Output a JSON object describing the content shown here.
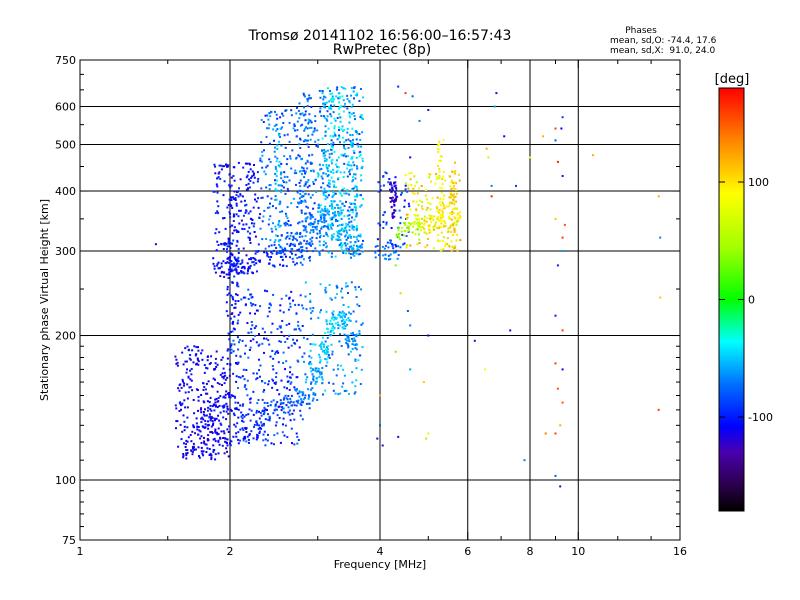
{
  "chart_data": {
    "type": "scatter",
    "title": "Tromsø 20141102 16:56:00–16:57:43",
    "subtitle": "RwPretec (8p)",
    "xlabel": "Frequency [MHz]",
    "ylabel": "Stationary phase Virtual Height [km]",
    "x_scale": "log2",
    "y_scale": "log",
    "xlim": [
      1,
      16
    ],
    "ylim": [
      75,
      750
    ],
    "x_ticks": [
      1,
      2,
      4,
      6,
      8,
      10,
      16
    ],
    "x_tick_labels": [
      "1",
      "2",
      "4",
      "6",
      "8",
      "10",
      "16"
    ],
    "x_minor_ticks": [
      1.5,
      3,
      5,
      7,
      9,
      12,
      14
    ],
    "y_ticks": [
      75,
      100,
      200,
      300,
      400,
      500,
      600,
      750
    ],
    "y_tick_labels": [
      "75",
      "100",
      "200",
      "300",
      "400",
      "500",
      "600",
      "750"
    ],
    "x_gridlines": [
      2,
      4,
      6,
      8,
      10
    ],
    "y_gridlines": [
      100,
      200,
      300,
      400,
      500,
      600
    ],
    "grid": true,
    "stats": {
      "heading": "Phases",
      "line1": "mean, sd,O: -74.4, 17.6",
      "line2": "mean, sd,X:  91.0, 24.0"
    },
    "colorbar": {
      "label": "[deg]",
      "min": -180,
      "max": 180,
      "ticks": [
        100,
        0,
        -100
      ],
      "tick_labels": [
        "100",
        "0",
        "-100"
      ],
      "placement": "right"
    },
    "traces": [
      {
        "f1": 1.6,
        "f2": 2.0,
        "h": 115,
        "v": -115
      },
      {
        "f1": 1.65,
        "f2": 2.0,
        "h": 125,
        "v": -112
      },
      {
        "f1": 1.75,
        "f2": 2.1,
        "h": 135,
        "v": -108
      },
      {
        "f1": 1.8,
        "f2": 2.2,
        "h": 145,
        "v": -105
      },
      {
        "f1": 2.0,
        "f2": 2.4,
        "h": 125,
        "v": -100
      },
      {
        "f1": 2.1,
        "f2": 2.5,
        "h": 135,
        "v": -95
      },
      {
        "f1": 2.3,
        "f2": 2.7,
        "h": 140,
        "v": -88
      },
      {
        "f1": 2.5,
        "f2": 2.9,
        "h": 145,
        "v": -80
      },
      {
        "f1": 2.7,
        "f2": 3.0,
        "h": 150,
        "v": -70
      },
      {
        "f1": 2.9,
        "f2": 3.1,
        "h": 165,
        "v": -60
      },
      {
        "f1": 3.0,
        "f2": 3.2,
        "h": 185,
        "v": -50
      },
      {
        "f1": 3.1,
        "f2": 3.3,
        "h": 210,
        "v": -45
      },
      {
        "f1": 3.3,
        "f2": 3.5,
        "h": 215,
        "v": -55
      },
      {
        "f1": 3.4,
        "f2": 3.6,
        "h": 195,
        "v": -65
      },
      {
        "f1": 1.85,
        "f2": 2.1,
        "h": 275,
        "v": -110
      },
      {
        "f1": 2.0,
        "f2": 2.3,
        "h": 280,
        "v": -105
      },
      {
        "f1": 2.2,
        "f2": 2.6,
        "h": 290,
        "v": -98
      },
      {
        "f1": 2.4,
        "f2": 2.8,
        "h": 300,
        "v": -90
      },
      {
        "f1": 2.6,
        "f2": 2.95,
        "h": 315,
        "v": -80
      },
      {
        "f1": 2.8,
        "f2": 3.1,
        "h": 340,
        "v": -70
      },
      {
        "f1": 3.0,
        "f2": 3.3,
        "h": 360,
        "v": -60
      },
      {
        "f1": 3.2,
        "f2": 3.5,
        "h": 330,
        "v": -55
      },
      {
        "f1": 3.4,
        "f2": 3.7,
        "h": 310,
        "v": -60
      },
      {
        "f1": 3.9,
        "f2": 4.4,
        "h": 300,
        "v": -70
      },
      {
        "f1": 4.3,
        "f2": 4.8,
        "h": 330,
        "v": 40
      },
      {
        "f1": 4.6,
        "f2": 5.2,
        "h": 345,
        "v": 70
      },
      {
        "f1": 4.9,
        "f2": 5.5,
        "h": 340,
        "v": 100
      },
      {
        "f1": 5.2,
        "f2": 5.8,
        "h": 360,
        "v": 95
      }
    ],
    "columns": [
      {
        "f": 2.0,
        "h1": 180,
        "h2": 470,
        "v": -105
      },
      {
        "f": 2.05,
        "h1": 200,
        "h2": 420,
        "v": -100
      },
      {
        "f": 2.5,
        "h1": 300,
        "h2": 560,
        "v": -55
      },
      {
        "f": 2.8,
        "h1": 320,
        "h2": 640,
        "v": -75
      },
      {
        "f": 2.9,
        "h1": 330,
        "h2": 640,
        "v": -70
      },
      {
        "f": 3.1,
        "h1": 310,
        "h2": 650,
        "v": -60
      },
      {
        "f": 3.2,
        "h1": 310,
        "h2": 650,
        "v": -45
      },
      {
        "f": 3.35,
        "h1": 300,
        "h2": 660,
        "v": -40
      },
      {
        "f": 3.55,
        "h1": 330,
        "h2": 660,
        "v": -50
      },
      {
        "f": 4.25,
        "h1": 350,
        "h2": 420,
        "v": -125
      },
      {
        "f": 5.3,
        "h1": 300,
        "h2": 520,
        "v": 90
      },
      {
        "f": 5.6,
        "h1": 320,
        "h2": 460,
        "v": 110
      }
    ],
    "clouds": [
      {
        "f1": 1.55,
        "f2": 2.0,
        "h1": 112,
        "h2": 190,
        "n": 260,
        "v1": -125,
        "v2": -95
      },
      {
        "f1": 2.0,
        "f2": 2.8,
        "h1": 118,
        "h2": 250,
        "n": 300,
        "v1": -115,
        "v2": -70
      },
      {
        "f1": 2.8,
        "f2": 3.7,
        "h1": 150,
        "h2": 260,
        "n": 160,
        "v1": -85,
        "v2": -40
      },
      {
        "f1": 1.85,
        "f2": 2.3,
        "h1": 270,
        "h2": 460,
        "n": 200,
        "v1": -120,
        "v2": -90
      },
      {
        "f1": 2.3,
        "f2": 3.0,
        "h1": 280,
        "h2": 600,
        "n": 260,
        "v1": -100,
        "v2": -55
      },
      {
        "f1": 3.0,
        "f2": 3.7,
        "h1": 290,
        "h2": 660,
        "n": 340,
        "v1": -90,
        "v2": -35
      },
      {
        "f1": 3.95,
        "f2": 4.6,
        "h1": 300,
        "h2": 440,
        "n": 60,
        "v1": -115,
        "v2": -70
      },
      {
        "f1": 4.5,
        "f2": 5.8,
        "h1": 300,
        "h2": 440,
        "n": 130,
        "v1": 40,
        "v2": 130
      }
    ],
    "points": [
      [
        1.42,
        310,
        -115
      ],
      [
        4.35,
        660,
        -95
      ],
      [
        4.5,
        640,
        160
      ],
      [
        4.65,
        630,
        -80
      ],
      [
        4.8,
        560,
        -70
      ],
      [
        5.0,
        590,
        -100
      ],
      [
        4.6,
        470,
        -110
      ],
      [
        4.3,
        280,
        30
      ],
      [
        4.4,
        245,
        110
      ],
      [
        4.55,
        225,
        -80
      ],
      [
        4.6,
        210,
        -70
      ],
      [
        4.3,
        185,
        30
      ],
      [
        4.0,
        150,
        120
      ],
      [
        4.0,
        130,
        -80
      ],
      [
        4.6,
        170,
        -60
      ],
      [
        4.9,
        160,
        110
      ],
      [
        4.95,
        122,
        40
      ],
      [
        3.95,
        122,
        -115
      ],
      [
        4.05,
        118,
        -125
      ],
      [
        4.35,
        123,
        -120
      ],
      [
        5.0,
        125,
        70
      ],
      [
        5.0,
        200,
        -110
      ],
      [
        6.2,
        195,
        -125
      ],
      [
        6.5,
        170,
        80
      ],
      [
        6.55,
        490,
        120
      ],
      [
        6.6,
        470,
        60
      ],
      [
        6.8,
        600,
        -60
      ],
      [
        6.85,
        640,
        -120
      ],
      [
        7.1,
        520,
        -110
      ],
      [
        6.7,
        390,
        170
      ],
      [
        6.7,
        410,
        -70
      ],
      [
        7.5,
        410,
        -90
      ],
      [
        7.3,
        205,
        -115
      ],
      [
        7.8,
        110,
        -70
      ],
      [
        8.5,
        520,
        120
      ],
      [
        9.0,
        540,
        160
      ],
      [
        9.0,
        510,
        -80
      ],
      [
        9.3,
        570,
        -90
      ],
      [
        9.25,
        540,
        -110
      ],
      [
        9.1,
        460,
        170
      ],
      [
        9.3,
        430,
        -100
      ],
      [
        9.0,
        350,
        110
      ],
      [
        9.3,
        320,
        160
      ],
      [
        9.4,
        340,
        150
      ],
      [
        9.3,
        300,
        -60
      ],
      [
        9.1,
        280,
        -100
      ],
      [
        9.0,
        220,
        -100
      ],
      [
        9.3,
        205,
        160
      ],
      [
        9.0,
        175,
        160
      ],
      [
        9.3,
        170,
        -110
      ],
      [
        9.1,
        155,
        150
      ],
      [
        9.3,
        145,
        150
      ],
      [
        8.6,
        125,
        140
      ],
      [
        9.0,
        125,
        160
      ],
      [
        9.2,
        130,
        120
      ],
      [
        9.0,
        102,
        -80
      ],
      [
        9.2,
        97,
        -125
      ],
      [
        10.7,
        475,
        120
      ],
      [
        14.5,
        390,
        120
      ],
      [
        14.6,
        240,
        110
      ],
      [
        14.5,
        140,
        160
      ],
      [
        14.6,
        320,
        -70
      ],
      [
        8.0,
        470,
        80
      ]
    ]
  }
}
